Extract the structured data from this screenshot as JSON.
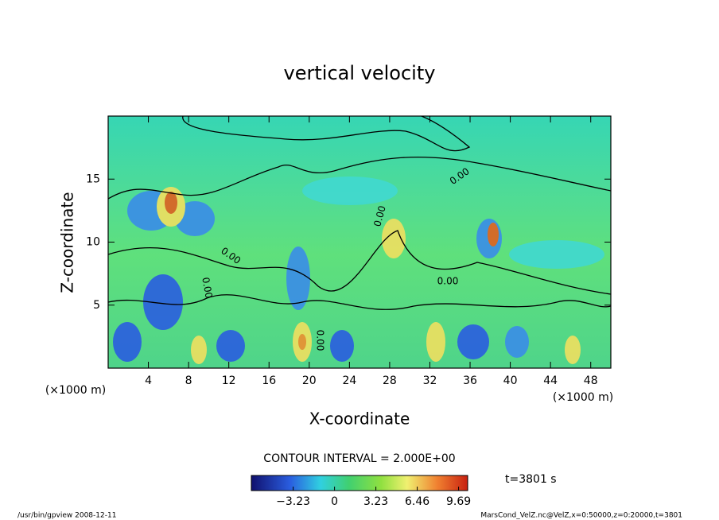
{
  "chart_data": {
    "type": "contour",
    "title": "vertical velocity",
    "xlabel": "X-coordinate",
    "ylabel": "Z-coordinate",
    "x_unit": "(×1000 m)",
    "y_unit": "(×1000 m)",
    "xlim": [
      0,
      50
    ],
    "xticks": [
      4,
      8,
      12,
      16,
      20,
      24,
      28,
      32,
      36,
      40,
      44,
      48
    ],
    "ylim": [
      0,
      20
    ],
    "yticks": [
      5,
      10,
      15
    ],
    "contour_interval": "CONTOUR INTERVAL = 2.000E+00",
    "contour_labels": [
      "0.00",
      "0.00",
      "0.00",
      "0.00",
      "0.00",
      "0.00"
    ],
    "colorbar": {
      "clim": [
        -6.5,
        10.4
      ],
      "ticks": [
        {
          "value": -3.23,
          "label": "−3.23"
        },
        0,
        3.23,
        6.46,
        9.69
      ]
    },
    "time_label": "t=3801 s",
    "footer_left": "/usr/bin/gpview  2008-12-11",
    "footer_right": "MarsCond_VelZ.nc@VelZ,x=0:50000,z=0:20000,t=3801"
  }
}
